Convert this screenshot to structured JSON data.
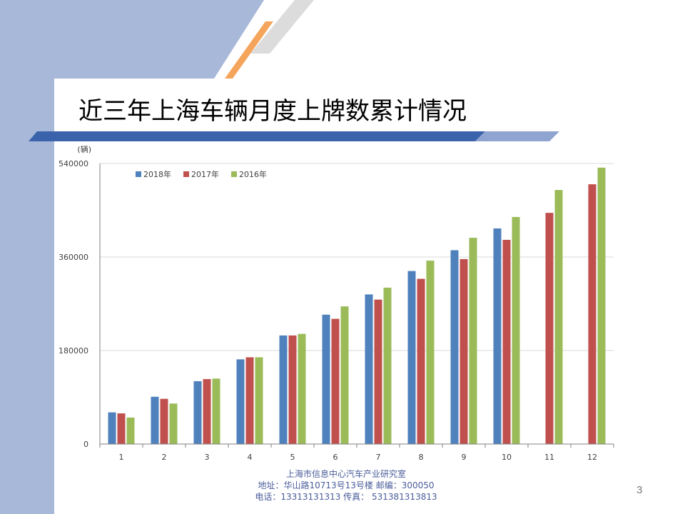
{
  "slide": {
    "title": "近三年上海车辆月度上牌数累计情况",
    "page_number": "3",
    "footer": {
      "line1": "上海市信息中心汽车产业研究室",
      "line2": "地址：华山路10713号13号楼    邮编：300050",
      "line3": "电话：13313131313   传真：  531381313813"
    },
    "colors": {
      "side_panel": "#a8b8d8",
      "title_band": "#3a63ac",
      "accent_orange": "#f5a45b"
    }
  },
  "chart_data": {
    "type": "bar",
    "title": "",
    "ylabel": "(辆)",
    "xlabel": "",
    "ylim": [
      0,
      540000
    ],
    "yticks": [
      0,
      180000,
      360000,
      540000
    ],
    "ytick_labels": [
      "0",
      "180000",
      "360000",
      "540000"
    ],
    "grid": true,
    "legend_position": "top-left",
    "categories": [
      "1",
      "2",
      "3",
      "4",
      "5",
      "6",
      "7",
      "8",
      "9",
      "10",
      "11",
      "12"
    ],
    "series": [
      {
        "name": "2018年",
        "color": "#4f81bd",
        "values": [
          61000,
          91000,
          121000,
          163000,
          209000,
          249000,
          288000,
          333000,
          373000,
          415000,
          null,
          null
        ]
      },
      {
        "name": "2017年",
        "color": "#c0504d",
        "values": [
          59000,
          87000,
          125000,
          167000,
          209000,
          241000,
          278000,
          318000,
          356000,
          393000,
          445000,
          500000
        ]
      },
      {
        "name": "2016年",
        "color": "#9bbb59",
        "values": [
          51000,
          78000,
          126000,
          167000,
          212000,
          265000,
          301000,
          353000,
          397000,
          437000,
          489000,
          532000
        ]
      }
    ]
  }
}
